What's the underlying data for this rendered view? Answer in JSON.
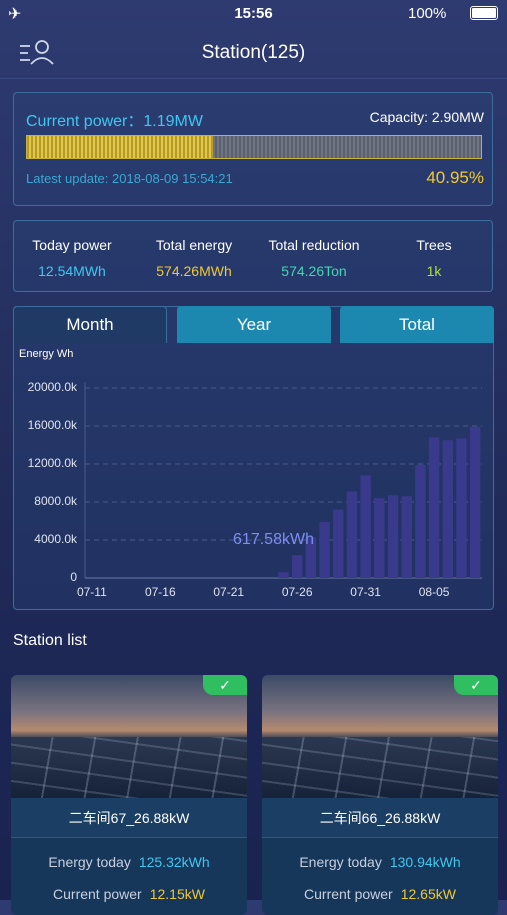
{
  "status_bar": {
    "time": "15:56",
    "battery": "100%"
  },
  "header": {
    "title": "Station(125)"
  },
  "power": {
    "label": "Current power：",
    "value": "1.19MW",
    "capacity": "Capacity: 2.90MW",
    "update": "Latest update: 2018-08-09 15:54:21",
    "percent": 40.95,
    "percent_label": "40.95%"
  },
  "stats": [
    {
      "label": "Today power",
      "value": "12.54MWh"
    },
    {
      "label": "Total energy",
      "value": "574.26MWh"
    },
    {
      "label": "Total reduction",
      "value": "574.26Ton"
    },
    {
      "label": "Trees",
      "value": "1k"
    }
  ],
  "tabs": [
    "Month",
    "Year",
    "Total"
  ],
  "chart_data": {
    "type": "bar",
    "ylabel": "Energy Wh",
    "color": "#3a3a8c",
    "grid": true,
    "categories": [
      "07-11",
      null,
      null,
      null,
      null,
      "07-16",
      null,
      null,
      null,
      null,
      "07-21",
      null,
      null,
      null,
      null,
      "07-26",
      null,
      null,
      null,
      null,
      "07-31",
      null,
      null,
      null,
      null,
      "08-05",
      null,
      null,
      null
    ],
    "values": [
      0,
      0,
      0,
      0,
      0,
      0,
      0,
      0,
      0,
      0,
      0,
      0,
      0,
      0,
      617.58,
      2400,
      4300,
      5900,
      7200,
      9100,
      10800,
      8400,
      8700,
      8600,
      11900,
      14800,
      14500,
      14700,
      15900
    ],
    "value_labels": [
      null,
      null,
      null,
      null,
      null,
      null,
      null,
      null,
      null,
      null,
      null,
      null,
      null,
      null,
      "617.58kWh",
      null,
      null,
      null,
      null,
      null,
      null,
      null,
      null,
      null,
      null,
      null,
      null,
      null,
      null
    ],
    "ylim": [
      0,
      20000
    ],
    "yticks": [
      0,
      {
        "value": 4000,
        "label": "4000.0k"
      },
      {
        "value": 8000,
        "label": "8000.0k"
      },
      {
        "value": 12000,
        "label": "12000.0k"
      },
      {
        "value": 16000,
        "label": "16000.0k"
      },
      {
        "value": 20000,
        "label": "20000.0k"
      }
    ]
  },
  "station_list": {
    "title": "Station list",
    "stations": [
      {
        "name": "二车间67_26.88kW",
        "energy_label": "Energy today",
        "energy": "125.32kWh",
        "current_label": "Current power",
        "current": "12.15kW"
      },
      {
        "name": "二车间66_26.88kW",
        "energy_label": "Energy today",
        "energy": "130.94kWh",
        "current_label": "Current power",
        "current": "12.65kW"
      }
    ]
  }
}
